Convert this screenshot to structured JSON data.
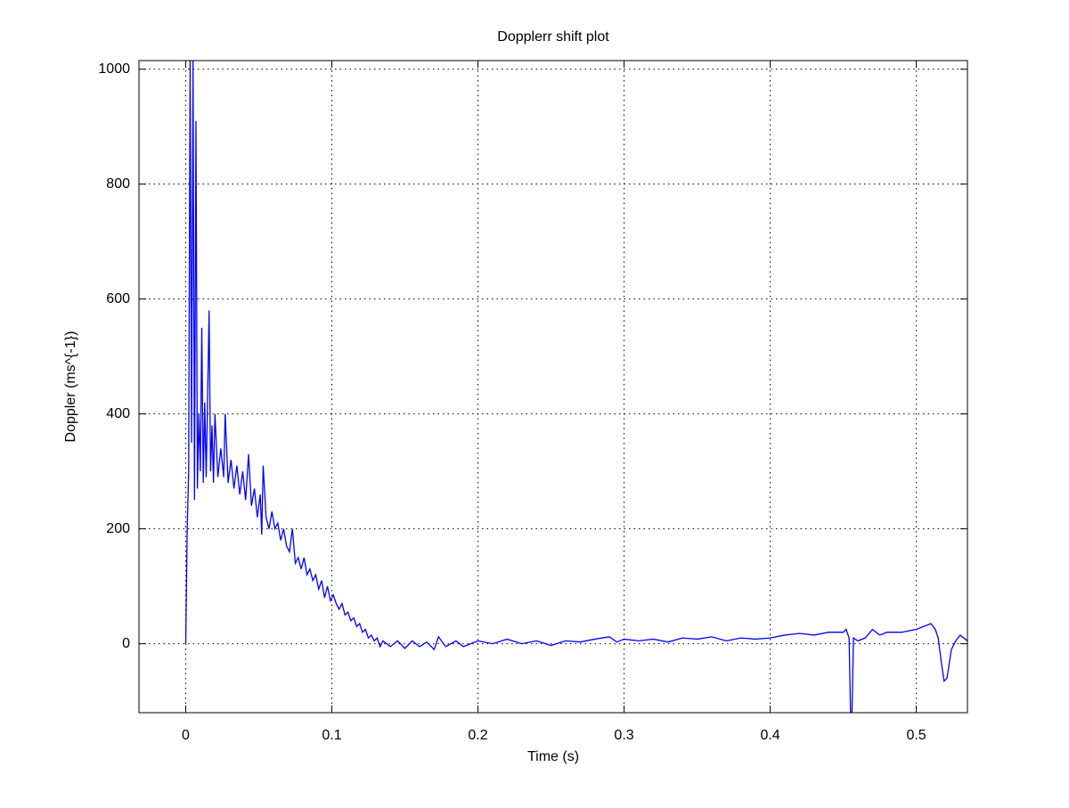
{
  "chart_data": {
    "type": "line",
    "title": "Dopplerr shift plot",
    "x_label": "Time (s)",
    "y_label": "Doppler (ms^{-1})",
    "color": "#0000ff",
    "grid": true,
    "xlim": [
      -0.032,
      0.535
    ],
    "ylim": [
      -120,
      1015
    ],
    "xticks": [
      0,
      0.1,
      0.2,
      0.3,
      0.4,
      0.5
    ],
    "yticks": [
      0,
      200,
      400,
      600,
      800,
      1000
    ],
    "x": [
      0,
      0.001,
      0.002,
      0.003,
      0.004,
      0.005,
      0.006,
      0.007,
      0.008,
      0.009,
      0.01,
      0.011,
      0.012,
      0.013,
      0.014,
      0.015,
      0.016,
      0.017,
      0.018,
      0.019,
      0.02,
      0.022,
      0.024,
      0.026,
      0.027,
      0.029,
      0.031,
      0.033,
      0.035,
      0.037,
      0.039,
      0.041,
      0.043,
      0.045,
      0.047,
      0.049,
      0.051,
      0.052,
      0.053,
      0.055,
      0.057,
      0.059,
      0.061,
      0.063,
      0.065,
      0.067,
      0.069,
      0.071,
      0.073,
      0.075,
      0.077,
      0.079,
      0.081,
      0.083,
      0.085,
      0.087,
      0.089,
      0.091,
      0.093,
      0.095,
      0.097,
      0.099,
      0.101,
      0.103,
      0.105,
      0.107,
      0.109,
      0.111,
      0.113,
      0.115,
      0.117,
      0.119,
      0.121,
      0.123,
      0.125,
      0.127,
      0.129,
      0.131,
      0.133,
      0.135,
      0.14,
      0.145,
      0.15,
      0.155,
      0.16,
      0.165,
      0.17,
      0.173,
      0.178,
      0.185,
      0.19,
      0.2,
      0.21,
      0.22,
      0.23,
      0.24,
      0.25,
      0.26,
      0.27,
      0.28,
      0.29,
      0.295,
      0.3,
      0.31,
      0.32,
      0.33,
      0.34,
      0.35,
      0.36,
      0.37,
      0.38,
      0.39,
      0.4,
      0.41,
      0.42,
      0.43,
      0.44,
      0.45,
      0.452,
      0.454,
      0.455,
      0.456,
      0.457,
      0.46,
      0.465,
      0.47,
      0.475,
      0.48,
      0.49,
      0.5,
      0.505,
      0.51,
      0.513,
      0.515,
      0.517,
      0.519,
      0.521,
      0.524,
      0.527,
      0.53,
      0.535
    ],
    "values": [
      0,
      200,
      300,
      1015,
      350,
      1015,
      250,
      910,
      270,
      400,
      300,
      550,
      280,
      420,
      290,
      430,
      580,
      300,
      380,
      280,
      400,
      290,
      340,
      290,
      400,
      280,
      320,
      270,
      310,
      260,
      300,
      250,
      330,
      240,
      270,
      220,
      260,
      190,
      310,
      220,
      200,
      230,
      200,
      210,
      180,
      200,
      170,
      160,
      200,
      140,
      150,
      130,
      150,
      120,
      130,
      110,
      120,
      95,
      110,
      80,
      100,
      75,
      85,
      70,
      60,
      70,
      50,
      55,
      40,
      45,
      30,
      35,
      20,
      25,
      10,
      15,
      5,
      10,
      -5,
      5,
      -5,
      5,
      -8,
      5,
      -5,
      3,
      -10,
      12,
      -5,
      5,
      -5,
      5,
      0,
      8,
      0,
      5,
      -3,
      5,
      3,
      8,
      12,
      3,
      8,
      5,
      8,
      3,
      10,
      8,
      12,
      5,
      10,
      8,
      10,
      15,
      18,
      15,
      20,
      20,
      25,
      10,
      -120,
      -120,
      10,
      5,
      10,
      25,
      15,
      20,
      20,
      25,
      30,
      35,
      25,
      10,
      -30,
      -65,
      -60,
      -10,
      5,
      15,
      5
    ]
  }
}
